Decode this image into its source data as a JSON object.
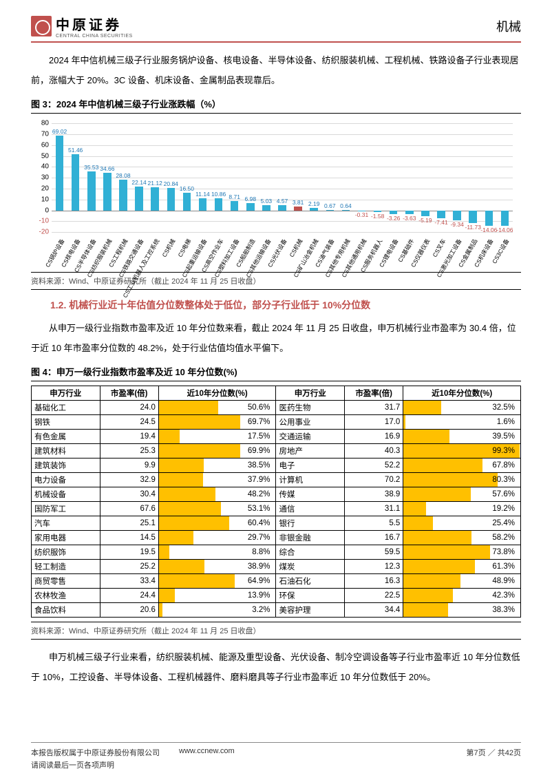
{
  "header": {
    "logo_cn": "中原证券",
    "logo_en": "CENTRAL CHINA SECURITIES",
    "right": "机械"
  },
  "para1": "2024 年中信机械三级子行业服务锅炉设备、核电设备、半导体设备、纺织服装机械、工程机械、铁路设备子行业表现居前，涨幅大于 20%。3C 设备、机床设备、金属制品表现靠后。",
  "fig3_title": "图 3：2024 年中信机械三级子行业涨跌幅（%）",
  "chart3": {
    "y_min": -20,
    "y_max": 80,
    "y_step": 10,
    "bar_color": "#31b0d5",
    "highlight_color": "#c0504d",
    "grid_color": "#d9d9d9",
    "highlight_index": 15,
    "categories": [
      "CS锅炉设备",
      "CS核电设备",
      "CS半导体设备",
      "CS纺织服装机械",
      "CS工程机械",
      "CS铁路交通设备",
      "CS工业机器人及工控系统",
      "CS机械",
      "CS电梯",
      "CS起重运输设备",
      "CS高空作业车",
      "CS塑料加工设备",
      "CS船舶制造",
      "CS其他运输设备",
      "CS光伏设备",
      "CS机械",
      "CS矿山冶金机械",
      "CS油气装备",
      "CS其他专用机械",
      "CS其他通用机械",
      "CS服务机器人",
      "CS锂电设备",
      "CS基础件",
      "CS仪器仪表",
      "CS叉车",
      "CS激光加工设备",
      "CS金属制品",
      "CS机床设备",
      "CS3C设备"
    ],
    "values": [
      69.02,
      51.46,
      35.53,
      34.66,
      28.08,
      22.14,
      21.12,
      20.84,
      16.5,
      11.14,
      10.86,
      8.71,
      6.98,
      5.03,
      4.57,
      3.81,
      2.19,
      0.67,
      0.64,
      -0.31,
      -1.58,
      -3.26,
      -3.63,
      -5.19,
      -7.41,
      -9.34,
      -11.73,
      -14.06,
      -14.06
    ],
    "label_fontsize": 8.5
  },
  "source3": "资料来源：Wind、中原证券研究所（截止 2024 年 11 月 25 日收盘）",
  "section12": "1.2. 机械行业近十年估值分位数整体处于低位，部分子行业低于 10%分位数",
  "para2": "从申万一级行业指数市盈率及近 10 年分位数来看，截止 2024 年 11 月 25 日收盘，申万机械行业市盈率为 30.4 倍，位于近 10 年市盈率分位数的 48.2%，处于行业估值均值水平偏下。",
  "fig4_title": "图 4：申万一级行业指数市盈率及近 10 年分位数(%)",
  "table4": {
    "headers": [
      "申万行业",
      "市盈率(倍)",
      "近10年分位数(%)",
      "申万行业",
      "市盈率(倍)",
      "近10年分位数(%)"
    ],
    "bar_color": "#ffc000",
    "rows": [
      [
        "基础化工",
        "24.0",
        50.6,
        "医药生物",
        "31.7",
        32.5
      ],
      [
        "钢铁",
        "24.5",
        69.7,
        "公用事业",
        "17.0",
        1.6
      ],
      [
        "有色金属",
        "19.4",
        17.5,
        "交通运输",
        "16.9",
        39.5
      ],
      [
        "建筑材料",
        "25.3",
        69.9,
        "房地产",
        "40.3",
        99.3
      ],
      [
        "建筑装饰",
        "9.9",
        38.5,
        "电子",
        "52.2",
        67.8
      ],
      [
        "电力设备",
        "32.9",
        37.9,
        "计算机",
        "70.2",
        80.3
      ],
      [
        "机械设备",
        "30.4",
        48.2,
        "传媒",
        "38.9",
        57.6
      ],
      [
        "国防军工",
        "67.6",
        53.1,
        "通信",
        "31.1",
        19.2
      ],
      [
        "汽车",
        "25.1",
        60.4,
        "银行",
        "5.5",
        25.4
      ],
      [
        "家用电器",
        "14.5",
        29.7,
        "非银金融",
        "16.7",
        58.2
      ],
      [
        "纺织服饰",
        "19.5",
        8.8,
        "综合",
        "59.5",
        73.8
      ],
      [
        "轻工制造",
        "25.2",
        38.9,
        "煤炭",
        "12.3",
        61.3
      ],
      [
        "商贸零售",
        "33.4",
        64.9,
        "石油石化",
        "16.3",
        48.9
      ],
      [
        "农林牧渔",
        "24.4",
        13.9,
        "环保",
        "22.5",
        42.3
      ],
      [
        "食品饮料",
        "20.6",
        3.2,
        "美容护理",
        "34.4",
        38.3
      ]
    ]
  },
  "source4": "资料来源：Wind、中原证券研究所（截止 2024 年 11 月 25 日收盘）",
  "para3": "申万机械三级子行业来看，纺织服装机械、能源及重型设备、光伏设备、制冷空调设备等子行业市盈率近 10 年分位数低于 10%，工控设备、半导体设备、工程机械器件、磨料磨具等子行业市盈率近 10 年分位数低于 20%。",
  "footer": {
    "copyright": "本报告版权属于中原证券股份有限公司",
    "url": "www.ccnew.com",
    "disclaimer": "请阅读最后一页各项声明",
    "page": "第7页 ／ 共42页"
  }
}
